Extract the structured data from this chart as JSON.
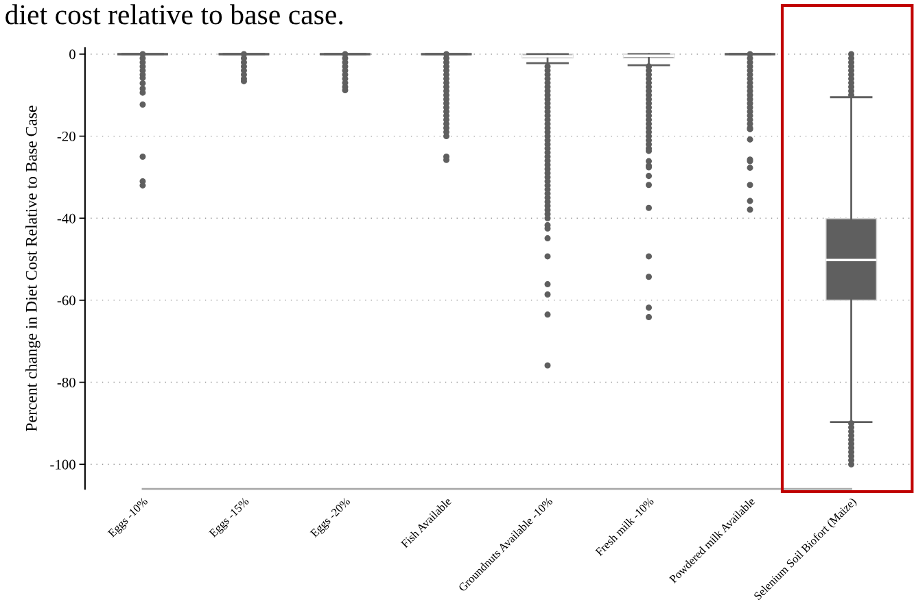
{
  "chart_data": {
    "type": "box",
    "title": "diet cost relative to base case.",
    "ylabel": "Percent change in Diet Cost Relative to Base Case",
    "categories": [
      "Eggs -10%",
      "Eggs -15%",
      "Eggs -20%",
      "Fish Available",
      "Groundnuts Available -10%",
      "Fresh milk -10%",
      "Powdered milk Available",
      "Selenium Soil Biofort (Maize)"
    ],
    "color": "#5f5f5f",
    "boxes": [
      {
        "low": 0,
        "q1": 0,
        "median": 0,
        "q3": 0,
        "high": 0,
        "outliers": [
          0,
          -1,
          -2,
          -3,
          -4,
          -5,
          -5.8,
          -7.1,
          -8.4,
          -9.4,
          -12.3,
          -25,
          -31,
          -32
        ]
      },
      {
        "low": 0,
        "q1": 0,
        "median": 0,
        "q3": 0,
        "high": 0,
        "outliers": [
          0,
          -1,
          -2,
          -3,
          -4,
          -5,
          -6,
          -6.6
        ]
      },
      {
        "low": 0,
        "q1": 0,
        "median": 0,
        "q3": 0,
        "high": 0,
        "outliers": [
          0,
          -1,
          -2,
          -3,
          -4,
          -5,
          -6,
          -7,
          -8,
          -8.8
        ]
      },
      {
        "low": 0,
        "q1": 0,
        "median": 0,
        "q3": 0,
        "high": 0,
        "outliers": [
          0,
          -1,
          -2,
          -3,
          -4,
          -5,
          -6,
          -7,
          -8,
          -9,
          -10,
          -11,
          -12,
          -13,
          -14,
          -15,
          -16,
          -17,
          -18,
          -19,
          -20,
          -25,
          -25.8
        ]
      },
      {
        "low": -2.2,
        "q1": -0.9,
        "median": -0.5,
        "q3": 0,
        "high": 0,
        "outliers": [
          -3,
          -4,
          -5,
          -6,
          -7,
          -8,
          -9,
          -10,
          -11,
          -12,
          -13,
          -14,
          -15,
          -16,
          -17,
          -18,
          -19,
          -20,
          -21,
          -22,
          -23,
          -24,
          -25,
          -26,
          -27,
          -28,
          -29,
          -30,
          -31,
          -32,
          -33,
          -34,
          -35,
          -36,
          -37,
          -38,
          -39,
          -40,
          -41.7,
          -42.5,
          -44.9,
          -49.3,
          -56.1,
          -58.6,
          -63.5,
          -75.9
        ]
      },
      {
        "low": -2.7,
        "q1": -0.9,
        "median": -0.4,
        "q3": 0,
        "high": 0,
        "outliers": [
          -3,
          -4,
          -5,
          -6,
          -7,
          -8,
          -9,
          -10,
          -11,
          -12,
          -13,
          -14,
          -15,
          -16,
          -17,
          -18,
          -19,
          -20,
          -21,
          -22,
          -23,
          -23.6,
          -26.1,
          -27.2,
          -27.6,
          -29.7,
          -31.9,
          -37.5,
          -49.3,
          -54.3,
          -61.8,
          -64.1
        ]
      },
      {
        "low": 0,
        "q1": 0,
        "median": 0,
        "q3": 0,
        "high": 0,
        "outliers": [
          0,
          -1,
          -2,
          -3,
          -4,
          -5,
          -6,
          -7,
          -8,
          -9,
          -10,
          -11,
          -12,
          -13,
          -14,
          -15,
          -16,
          -17,
          -18,
          -18.3,
          -20.8,
          -25.7,
          -26.1,
          -27.7,
          -31.9,
          -35.8,
          -37.9
        ]
      },
      {
        "low": -89.7,
        "q1": -60,
        "median": -50.2,
        "q3": -40.1,
        "high": -10.5,
        "outliers": [
          0,
          -1,
          -2,
          -3,
          -4,
          -5,
          -6,
          -7,
          -8,
          -9,
          -10,
          -90,
          -91,
          -92,
          -93,
          -94,
          -95,
          -96,
          -97,
          -98,
          -99,
          -100
        ]
      }
    ],
    "ylim": [
      -106,
      1.5
    ],
    "yticks": [
      0,
      -20,
      -40,
      -60,
      -80,
      -100
    ],
    "grid": "y"
  }
}
